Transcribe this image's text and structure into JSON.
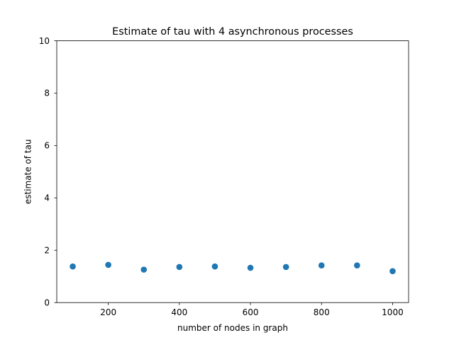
{
  "chart_data": {
    "type": "scatter",
    "title": "Estimate of tau with 4 asynchronous processes",
    "xlabel": "number of nodes in graph",
    "ylabel": "estimate of tau",
    "xlim": [
      55,
      1045
    ],
    "ylim": [
      0,
      10
    ],
    "xticks": [
      200,
      400,
      600,
      800,
      1000
    ],
    "yticks": [
      0,
      2,
      4,
      6,
      8,
      10
    ],
    "grid": false,
    "series": [
      {
        "color": "#1f77b4",
        "x": [
          100,
          200,
          300,
          400,
          500,
          600,
          700,
          800,
          900,
          1000
        ],
        "y": [
          1.38,
          1.44,
          1.26,
          1.36,
          1.38,
          1.33,
          1.36,
          1.42,
          1.42,
          1.2
        ]
      }
    ]
  }
}
